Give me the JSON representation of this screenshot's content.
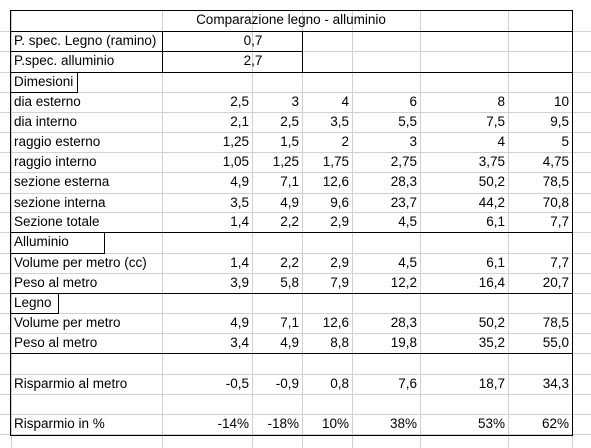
{
  "sheet": {
    "title": "Comparazione legno - alluminio",
    "params": [
      {
        "label": "P. spec. Legno (ramino)",
        "value": "0,7"
      },
      {
        "label": "P.spec. alluminio",
        "value": "2,7"
      }
    ],
    "sections": {
      "dimensioni": "Dimesioni",
      "alluminio": "Alluminio",
      "legno": "Legno"
    },
    "rows": {
      "dia_esterno": {
        "label": "dia esterno",
        "values": [
          "2,5",
          "3",
          "4",
          "6",
          "8",
          "10"
        ]
      },
      "dia_interno": {
        "label": "dia interno",
        "values": [
          "2,1",
          "2,5",
          "3,5",
          "5,5",
          "7,5",
          "9,5"
        ]
      },
      "raggio_esterno": {
        "label": "raggio esterno",
        "values": [
          "1,25",
          "1,5",
          "2",
          "3",
          "4",
          "5"
        ]
      },
      "raggio_interno": {
        "label": "raggio interno",
        "values": [
          "1,05",
          "1,25",
          "1,75",
          "2,75",
          "3,75",
          "4,75"
        ]
      },
      "sezione_esterna": {
        "label": "sezione esterna",
        "values": [
          "4,9",
          "7,1",
          "12,6",
          "28,3",
          "50,2",
          "78,5"
        ]
      },
      "sezione_interna": {
        "label": "sezione interna",
        "values": [
          "3,5",
          "4,9",
          "9,6",
          "23,7",
          "44,2",
          "70,8"
        ]
      },
      "sezione_totale": {
        "label": "Sezione totale",
        "values": [
          "1,4",
          "2,2",
          "2,9",
          "4,5",
          "6,1",
          "7,7"
        ]
      },
      "al_volume": {
        "label": "Volume per metro (cc)",
        "values": [
          "1,4",
          "2,2",
          "2,9",
          "4,5",
          "6,1",
          "7,7"
        ]
      },
      "al_peso": {
        "label": "Peso al metro",
        "values": [
          "3,9",
          "5,8",
          "7,9",
          "12,2",
          "16,4",
          "20,7"
        ]
      },
      "le_volume": {
        "label": "Volume per metro",
        "values": [
          "4,9",
          "7,1",
          "12,6",
          "28,3",
          "50,2",
          "78,5"
        ]
      },
      "le_peso": {
        "label": "Peso al metro",
        "values": [
          "3,4",
          "4,9",
          "8,8",
          "19,8",
          "35,2",
          "55,0"
        ]
      },
      "risparmio": {
        "label": "Risparmio al metro",
        "values": [
          "-0,5",
          "-0,9",
          "0,8",
          "7,6",
          "18,7",
          "34,3"
        ]
      },
      "risparmio_pct": {
        "label": "Risparmio in %",
        "values": [
          "-14%",
          "-18%",
          "10%",
          "38%",
          "53%",
          "62%"
        ]
      }
    }
  }
}
